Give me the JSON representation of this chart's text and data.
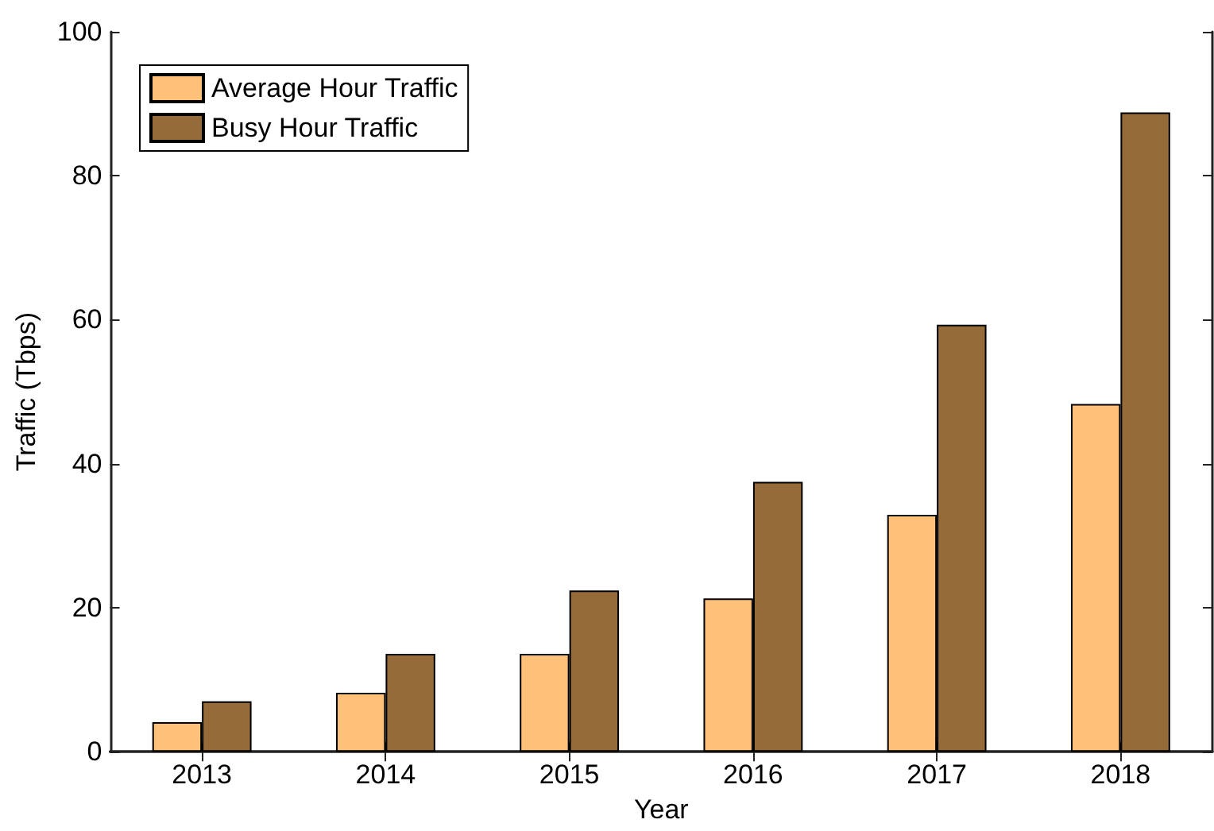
{
  "chart_data": {
    "type": "bar",
    "xlabel": "Year",
    "ylabel": "Traffic (Tbps)",
    "categories": [
      "2013",
      "2014",
      "2015",
      "2016",
      "2017",
      "2018"
    ],
    "series": [
      {
        "name": "Average Hour Traffic",
        "color": "#ffc17a",
        "values": [
          4.1,
          8.2,
          13.6,
          21.3,
          32.9,
          48.3
        ]
      },
      {
        "name": "Busy Hour Traffic",
        "color": "#956b39",
        "values": [
          7.0,
          13.6,
          22.4,
          37.5,
          59.3,
          88.8
        ]
      }
    ],
    "ylim": [
      0,
      100
    ],
    "yticks": [
      0,
      20,
      40,
      60,
      80,
      100
    ],
    "legend": "top left"
  }
}
